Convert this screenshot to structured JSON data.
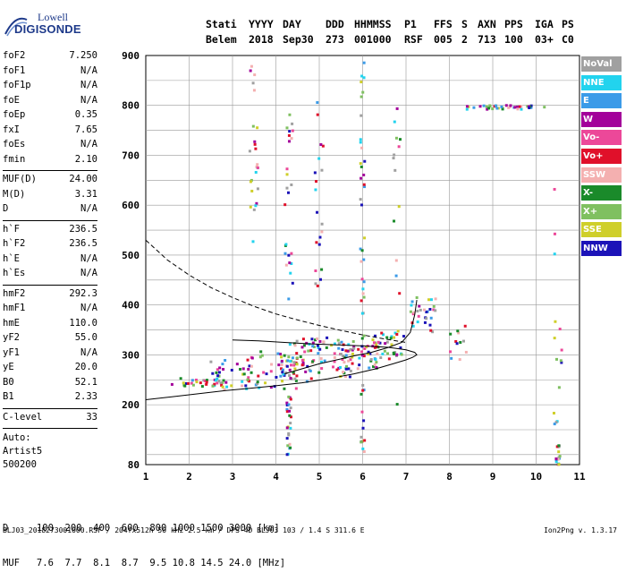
{
  "logo": {
    "line1": "Lowell",
    "line2": "DIGISONDE"
  },
  "header": {
    "labels": [
      "Stati",
      "YYYY",
      "DAY",
      "DDD",
      "HHMMSS",
      "P1",
      "FFS",
      "S",
      "AXN",
      "PPS",
      "IGA",
      "PS"
    ],
    "values": [
      "Belem",
      "2018",
      "Sep30",
      "273",
      "001000",
      "RSF",
      "005",
      "2",
      "713",
      "100",
      "03+",
      "C0"
    ]
  },
  "params": {
    "group1": [
      {
        "name": "foF2",
        "value": "7.250"
      },
      {
        "name": "foF1",
        "value": "N/A"
      },
      {
        "name": "foF1p",
        "value": "N/A"
      },
      {
        "name": "foE",
        "value": "N/A"
      },
      {
        "name": "foEp",
        "value": "0.35"
      },
      {
        "name": "fxI",
        "value": "7.65"
      },
      {
        "name": "foEs",
        "value": "N/A"
      },
      {
        "name": "fmin",
        "value": "2.10"
      }
    ],
    "group2": [
      {
        "name": "MUF(D)",
        "value": "24.00"
      },
      {
        "name": "M(D)",
        "value": "3.31"
      },
      {
        "name": "D",
        "value": "N/A"
      }
    ],
    "group3": [
      {
        "name": "h`F",
        "value": "236.5"
      },
      {
        "name": "h`F2",
        "value": "236.5"
      },
      {
        "name": "h`E",
        "value": "N/A"
      },
      {
        "name": "h`Es",
        "value": "N/A"
      }
    ],
    "group4": [
      {
        "name": "hmF2",
        "value": "292.3"
      },
      {
        "name": "hmF1",
        "value": "N/A"
      },
      {
        "name": "hmE",
        "value": "110.0"
      },
      {
        "name": "yF2",
        "value": "55.0"
      },
      {
        "name": "yF1",
        "value": "N/A"
      },
      {
        "name": "yE",
        "value": "20.0"
      },
      {
        "name": "B0",
        "value": "52.1"
      },
      {
        "name": "B1",
        "value": "2.33"
      }
    ],
    "group5": [
      {
        "name": "C-level",
        "value": "33"
      }
    ]
  },
  "auto": {
    "line1": "Auto:",
    "line2": "Artist5",
    "line3": "500200"
  },
  "legend": [
    {
      "name": "NoVal",
      "color": "#a0a0a0"
    },
    {
      "name": "NNE",
      "color": "#22d3ee"
    },
    {
      "name": "E",
      "color": "#3b9be8"
    },
    {
      "name": "W",
      "color": "#a3009a"
    },
    {
      "name": "Vo-",
      "color": "#ec4899"
    },
    {
      "name": "Vo+",
      "color": "#e0102a"
    },
    {
      "name": "SSW",
      "color": "#f4b0b0"
    },
    {
      "name": "X-",
      "color": "#1a8a2a"
    },
    {
      "name": "X+",
      "color": "#7fc060"
    },
    {
      "name": "SSE",
      "color": "#cfcf2a"
    },
    {
      "name": "NNW",
      "color": "#1c13b8"
    }
  ],
  "chart_data": {
    "type": "scatter",
    "title": "",
    "xlabel": "",
    "ylabel": "",
    "xlim": [
      1,
      11
    ],
    "ylim": [
      80,
      900
    ],
    "x_ticks": [
      "1",
      "2",
      "3",
      "4",
      "5",
      "6",
      "7",
      "8",
      "9",
      "10",
      "11"
    ],
    "y_ticks": [
      "80",
      "200",
      "300",
      "400",
      "500",
      "600",
      "700",
      "800",
      "900"
    ],
    "y_tick_values": [
      80,
      200,
      300,
      400,
      500,
      600,
      700,
      800,
      900
    ],
    "grid": true,
    "profile_curve_solid": {
      "x": [
        1.0,
        1.6,
        2.2,
        2.8,
        3.4,
        4.0,
        4.6,
        5.2,
        5.8,
        6.3,
        6.7,
        7.0,
        7.15,
        7.25,
        7.2,
        7.0,
        6.6,
        6.0,
        5.4,
        4.8,
        4.2,
        3.6,
        3.0
      ],
      "y": [
        210,
        216,
        222,
        228,
        233,
        238,
        244,
        252,
        262,
        272,
        282,
        290,
        295,
        300,
        305,
        310,
        315,
        318,
        320,
        322,
        325,
        328,
        330
      ]
    },
    "trace_curve_solid": {
      "x": [
        4.2,
        4.6,
        5.0,
        5.4,
        5.8,
        6.2,
        6.6,
        6.9,
        7.1,
        7.2,
        7.25
      ],
      "y": [
        262,
        272,
        282,
        290,
        298,
        305,
        315,
        325,
        345,
        380,
        410
      ]
    },
    "muf_curve_dashed": {
      "x": [
        1.0,
        1.5,
        2.0,
        2.5,
        3.0,
        3.5,
        4.0,
        4.5,
        5.0,
        5.5,
        6.0,
        6.5,
        7.0
      ],
      "y": [
        530,
        490,
        460,
        435,
        415,
        397,
        382,
        370,
        359,
        349,
        340,
        332,
        325
      ]
    },
    "echo_clusters": [
      {
        "x": 2.2,
        "y": 245,
        "spread_x": 0.6,
        "spread_y": 10,
        "n": 30
      },
      {
        "x": 3.0,
        "y": 260,
        "spread_x": 0.6,
        "spread_y": 30,
        "n": 35
      },
      {
        "x": 3.9,
        "y": 270,
        "spread_x": 0.6,
        "spread_y": 40,
        "n": 45
      },
      {
        "x": 4.5,
        "y": 290,
        "spread_x": 0.4,
        "spread_y": 45,
        "n": 40
      },
      {
        "x": 5.2,
        "y": 295,
        "spread_x": 0.6,
        "spread_y": 40,
        "n": 55
      },
      {
        "x": 5.9,
        "y": 300,
        "spread_x": 0.5,
        "spread_y": 30,
        "n": 45
      },
      {
        "x": 6.6,
        "y": 320,
        "spread_x": 0.4,
        "spread_y": 30,
        "n": 35
      },
      {
        "x": 7.4,
        "y": 380,
        "spread_x": 0.3,
        "spread_y": 35,
        "n": 30
      },
      {
        "x": 8.2,
        "y": 330,
        "spread_x": 0.2,
        "spread_y": 40,
        "n": 12
      },
      {
        "x": 3.5,
        "y": 700,
        "spread_x": 0.1,
        "spread_y": 200,
        "n": 25
      },
      {
        "x": 4.3,
        "y": 550,
        "spread_x": 0.1,
        "spread_y": 250,
        "n": 25
      },
      {
        "x": 5.0,
        "y": 620,
        "spread_x": 0.1,
        "spread_y": 200,
        "n": 20
      },
      {
        "x": 6.0,
        "y": 500,
        "spread_x": 0.05,
        "spread_y": 400,
        "n": 50
      },
      {
        "x": 6.8,
        "y": 500,
        "spread_x": 0.1,
        "spread_y": 300,
        "n": 15
      },
      {
        "x": 9.3,
        "y": 796,
        "spread_x": 0.9,
        "spread_y": 4,
        "n": 40
      },
      {
        "x": 10.5,
        "y": 400,
        "spread_x": 0.1,
        "spread_y": 300,
        "n": 15
      },
      {
        "x": 10.5,
        "y": 100,
        "spread_x": 0.05,
        "spread_y": 20,
        "n": 15
      },
      {
        "x": 4.3,
        "y": 160,
        "spread_x": 0.05,
        "spread_y": 60,
        "n": 25
      }
    ]
  },
  "bottom": {
    "d_row": "D     100  200  400  600  800 1000 1500 3000 [km]",
    "muf_row": "MUF   7.6  7.7  8.1  8.7  9.5 10.8 14.5 24.0 [MHz]"
  },
  "footer": {
    "left": "BLJ03_2018273001000.RSF / 204fx512h 50 kHz 2.5 km / DPS-4D BLJ03 103 / 1.4 S 311.6 E",
    "right": "Ion2Png v. 1.3.17"
  }
}
